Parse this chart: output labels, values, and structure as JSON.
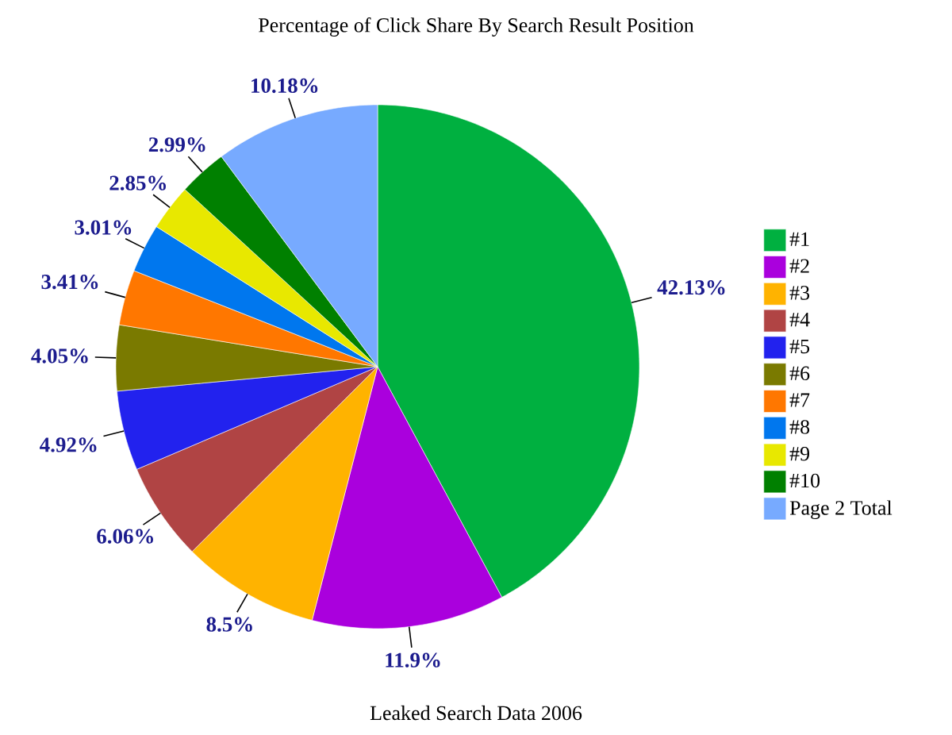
{
  "chart_data": {
    "type": "pie",
    "title": "Percentage of Click Share By Search Result Position",
    "categories": [
      "#1",
      "#2",
      "#3",
      "#4",
      "#5",
      "#6",
      "#7",
      "#8",
      "#9",
      "#10",
      "Page 2 Total"
    ],
    "values": [
      42.13,
      11.9,
      8.5,
      6.06,
      4.92,
      4.05,
      3.41,
      3.01,
      2.85,
      2.99,
      10.18
    ],
    "value_labels": [
      "42.13%",
      "11.9%",
      "8.5%",
      "6.06%",
      "4.92%",
      "4.05%",
      "3.41%",
      "3.01%",
      "2.85%",
      "2.99%",
      "10.18%"
    ],
    "colors": [
      "#00b040",
      "#aa00dd",
      "#ffb300",
      "#b04444",
      "#2222ee",
      "#7a7a00",
      "#ff7700",
      "#0077ee",
      "#e8e800",
      "#008000",
      "#77aaff"
    ],
    "legend": "right",
    "annotations": [
      "Leaked Search Data 2006"
    ]
  }
}
